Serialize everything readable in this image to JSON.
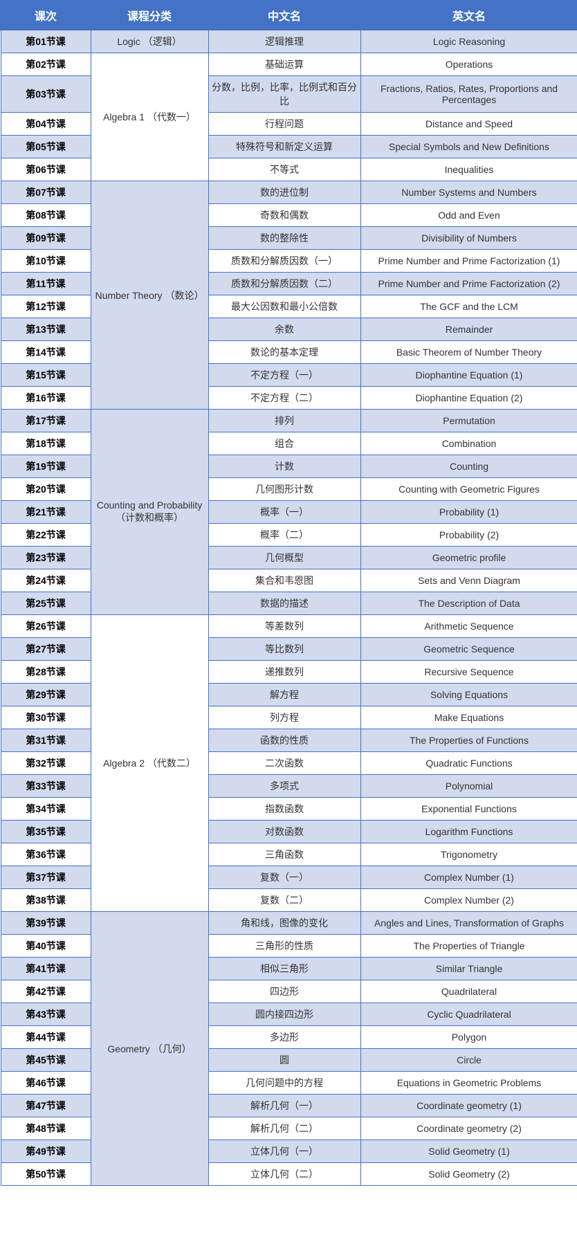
{
  "headers": {
    "lesson": "课次",
    "category": "课程分类",
    "cn": "中文名",
    "en": "英文名"
  },
  "categories": [
    {
      "label": "Logic （逻辑）",
      "rowspan": 1,
      "bg": "gray"
    },
    {
      "label": "Algebra 1 （代数一）",
      "rowspan": 5,
      "bg": "white"
    },
    {
      "label": "Number Theory （数论）",
      "rowspan": 10,
      "bg": "gray"
    },
    {
      "label": "Counting and Probability （计数和概率）",
      "rowspan": 9,
      "bg": "gray"
    },
    {
      "label": "Algebra 2 （代数二）",
      "rowspan": 13,
      "bg": "white"
    },
    {
      "label": "Geometry （几何）",
      "rowspan": 12,
      "bg": "gray"
    }
  ],
  "rows": [
    {
      "lesson": "第01节课",
      "cn": "逻辑推理",
      "en": "Logic Reasoning",
      "shade": "shaded",
      "catIndex": 0
    },
    {
      "lesson": "第02节课",
      "cn": "基础运算",
      "en": "Operations",
      "shade": "white",
      "catIndex": 1
    },
    {
      "lesson": "第03节课",
      "cn": "分数，比例，比率，比例式和百分比",
      "en": "Fractions, Ratios, Rates, Proportions and Percentages",
      "shade": "shaded"
    },
    {
      "lesson": "第04节课",
      "cn": "行程问题",
      "en": "Distance and Speed",
      "shade": "white"
    },
    {
      "lesson": "第05节课",
      "cn": "特殊符号和新定义运算",
      "en": "Special Symbols and New Definitions",
      "shade": "shaded"
    },
    {
      "lesson": "第06节课",
      "cn": "不等式",
      "en": "Inequalities",
      "shade": "white"
    },
    {
      "lesson": "第07节课",
      "cn": "数的进位制",
      "en": "Number Systems and Numbers",
      "shade": "shaded",
      "catIndex": 2
    },
    {
      "lesson": "第08节课",
      "cn": "奇数和偶数",
      "en": "Odd and Even",
      "shade": "white"
    },
    {
      "lesson": "第09节课",
      "cn": "数的整除性",
      "en": "Divisibility of Numbers",
      "shade": "shaded"
    },
    {
      "lesson": "第10节课",
      "cn": "质数和分解质因数（一）",
      "en": "Prime Number and Prime Factorization (1)",
      "shade": "white"
    },
    {
      "lesson": "第11节课",
      "cn": "质数和分解质因数（二）",
      "en": "Prime Number and Prime Factorization (2)",
      "shade": "shaded"
    },
    {
      "lesson": "第12节课",
      "cn": "最大公因数和最小公倍数",
      "en": "The GCF and the LCM",
      "shade": "white"
    },
    {
      "lesson": "第13节课",
      "cn": "余数",
      "en": "Remainder",
      "shade": "shaded"
    },
    {
      "lesson": "第14节课",
      "cn": "数论的基本定理",
      "en": "Basic Theorem of Number Theory",
      "shade": "white"
    },
    {
      "lesson": "第15节课",
      "cn": "不定方程（一）",
      "en": "Diophantine Equation (1)",
      "shade": "shaded"
    },
    {
      "lesson": "第16节课",
      "cn": "不定方程（二）",
      "en": "Diophantine Equation (2)",
      "shade": "white"
    },
    {
      "lesson": "第17节课",
      "cn": "排列",
      "en": "Permutation",
      "shade": "shaded",
      "catIndex": 3
    },
    {
      "lesson": "第18节课",
      "cn": "组合",
      "en": "Combination",
      "shade": "white"
    },
    {
      "lesson": "第19节课",
      "cn": "计数",
      "en": "Counting",
      "shade": "shaded"
    },
    {
      "lesson": "第20节课",
      "cn": "几何图形计数",
      "en": "Counting with Geometric Figures",
      "shade": "white"
    },
    {
      "lesson": "第21节课",
      "cn": "概率（一）",
      "en": "Probability (1)",
      "shade": "shaded"
    },
    {
      "lesson": "第22节课",
      "cn": "概率（二）",
      "en": "Probability (2)",
      "shade": "white"
    },
    {
      "lesson": "第23节课",
      "cn": "几何概型",
      "en": "Geometric profile",
      "shade": "shaded"
    },
    {
      "lesson": "第24节课",
      "cn": "集合和韦恩图",
      "en": "Sets and Venn Diagram",
      "shade": "white"
    },
    {
      "lesson": "第25节课",
      "cn": "数据的描述",
      "en": "The Description of Data",
      "shade": "shaded"
    },
    {
      "lesson": "第26节课",
      "cn": "等差数列",
      "en": "Arithmetic Sequence",
      "shade": "white",
      "catIndex": 4
    },
    {
      "lesson": "第27节课",
      "cn": "等比数列",
      "en": "Geometric Sequence",
      "shade": "shaded"
    },
    {
      "lesson": "第28节课",
      "cn": "递推数列",
      "en": "Recursive Sequence",
      "shade": "white"
    },
    {
      "lesson": "第29节课",
      "cn": "解方程",
      "en": "Solving Equations",
      "shade": "shaded"
    },
    {
      "lesson": "第30节课",
      "cn": "列方程",
      "en": "Make Equations",
      "shade": "white"
    },
    {
      "lesson": "第31节课",
      "cn": "函数的性质",
      "en": "The Properties of Functions",
      "shade": "shaded"
    },
    {
      "lesson": "第32节课",
      "cn": "二次函数",
      "en": "Quadratic Functions",
      "shade": "white"
    },
    {
      "lesson": "第33节课",
      "cn": "多项式",
      "en": "Polynomial",
      "shade": "shaded"
    },
    {
      "lesson": "第34节课",
      "cn": "指数函数",
      "en": "Exponential Functions",
      "shade": "white"
    },
    {
      "lesson": "第35节课",
      "cn": "对数函数",
      "en": "Logarithm Functions",
      "shade": "shaded"
    },
    {
      "lesson": "第36节课",
      "cn": "三角函数",
      "en": "Trigonometry",
      "shade": "white"
    },
    {
      "lesson": "第37节课",
      "cn": "复数（一）",
      "en": "Complex Number (1)",
      "shade": "shaded"
    },
    {
      "lesson": "第38节课",
      "cn": "复数（二）",
      "en": "Complex Number (2)",
      "shade": "white"
    },
    {
      "lesson": "第39节课",
      "cn": "角和线，图像的变化",
      "en": "Angles and Lines, Transformation of Graphs",
      "shade": "shaded",
      "catIndex": 5
    },
    {
      "lesson": "第40节课",
      "cn": "三角形的性质",
      "en": "The Properties of Triangle",
      "shade": "white"
    },
    {
      "lesson": "第41节课",
      "cn": "相似三角形",
      "en": "Similar Triangle",
      "shade": "shaded"
    },
    {
      "lesson": "第42节课",
      "cn": "四边形",
      "en": "Quadrilateral",
      "shade": "white"
    },
    {
      "lesson": "第43节课",
      "cn": "圆内接四边形",
      "en": "Cyclic Quadrilateral",
      "shade": "shaded"
    },
    {
      "lesson": "第44节课",
      "cn": "多边形",
      "en": "Polygon",
      "shade": "white"
    },
    {
      "lesson": "第45节课",
      "cn": "圆",
      "en": "Circle",
      "shade": "shaded"
    },
    {
      "lesson": "第46节课",
      "cn": "几何问题中的方程",
      "en": "Equations in Geometric Problems",
      "shade": "white"
    },
    {
      "lesson": "第47节课",
      "cn": "解析几何（一）",
      "en": "Coordinate geometry (1)",
      "shade": "shaded"
    },
    {
      "lesson": "第48节课",
      "cn": "解析几何（二）",
      "en": "Coordinate geometry (2)",
      "shade": "white"
    },
    {
      "lesson": "第49节课",
      "cn": "立体几何（一）",
      "en": "Solid Geometry (1)",
      "shade": "shaded"
    },
    {
      "lesson": "第50节课",
      "cn": "立体几何（二）",
      "en": "Solid Geometry (2)",
      "shade": "white"
    }
  ]
}
